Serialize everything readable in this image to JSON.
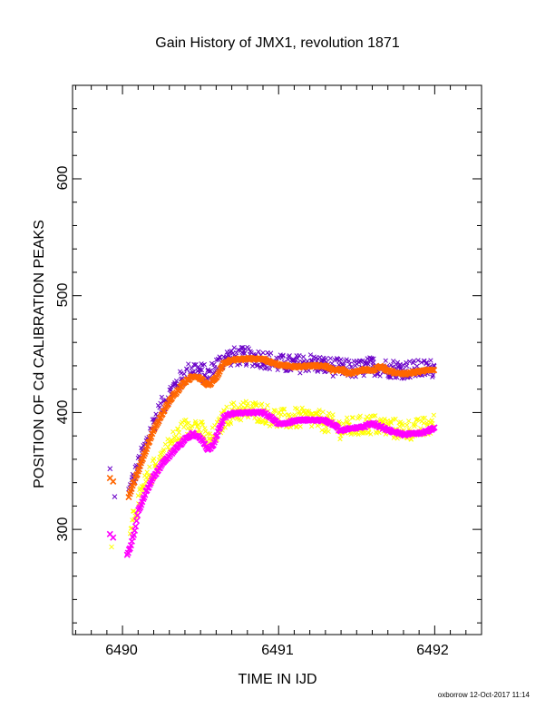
{
  "colors": {
    "orange": "#ff6600",
    "purple": "#6a00c8",
    "magenta": "#ff00ff",
    "yellow": "#ffff00",
    "axis": "#000000"
  },
  "chart_data": {
    "type": "scatter",
    "title": "Gain History of JMX1, revolution 1871",
    "xlabel": "TIME IN IJD",
    "ylabel": "POSITION OF Cd CALIBRATION PEAKS",
    "footer": "oxborrow 12-Oct-2017 11:14",
    "xlim": [
      6489.68,
      6492.3
    ],
    "ylim": [
      210,
      680
    ],
    "x_ticks": [
      "6490",
      "6491",
      "6492"
    ],
    "y_ticks": [
      "300",
      "400",
      "500",
      "600"
    ],
    "grid": false,
    "legend": "none",
    "series": [
      {
        "marker": "cross-dense",
        "color": "orange",
        "x": [
          6489.92,
          6489.94,
          6490.04,
          6490.1,
          6490.15,
          6490.2,
          6490.25,
          6490.3,
          6490.35,
          6490.4,
          6490.45,
          6490.5,
          6490.55,
          6490.6,
          6490.65,
          6490.7,
          6490.8,
          6490.9,
          6490.95,
          6491.0,
          6491.1,
          6491.2,
          6491.3,
          6491.35,
          6491.4,
          6491.45,
          6491.5,
          6491.55,
          6491.6,
          6491.65,
          6491.7,
          6491.75,
          6491.8,
          6491.85,
          6491.9,
          6491.95,
          6492.0
        ],
        "y": [
          344,
          341,
          328,
          350,
          368,
          385,
          398,
          410,
          418,
          426,
          431,
          429,
          423,
          430,
          442,
          445,
          446,
          446,
          443,
          441,
          439,
          440,
          440,
          436,
          437,
          433,
          435,
          437,
          436,
          440,
          436,
          434,
          433,
          434,
          435,
          436,
          437
        ]
      },
      {
        "marker": "cross-scatter",
        "color": "purple",
        "x": [
          6489.92,
          6489.95,
          6490.04,
          6490.1,
          6490.15,
          6490.2,
          6490.25,
          6490.3,
          6490.35,
          6490.4,
          6490.45,
          6490.5,
          6490.55,
          6490.6,
          6490.65,
          6490.7,
          6490.8,
          6490.9,
          6491.0,
          6491.1,
          6491.2,
          6491.3,
          6491.4,
          6491.5,
          6491.6,
          6491.7,
          6491.8,
          6491.9,
          6492.0
        ],
        "y": [
          352,
          328,
          332,
          355,
          372,
          392,
          405,
          416,
          425,
          432,
          438,
          435,
          432,
          440,
          446,
          448,
          448,
          446,
          442,
          441,
          443,
          440,
          438,
          437,
          440,
          438,
          437,
          437,
          438
        ]
      },
      {
        "marker": "cross-dense",
        "color": "magenta",
        "x": [
          6489.92,
          6489.94,
          6490.03,
          6490.05,
          6490.08,
          6490.1,
          6490.15,
          6490.2,
          6490.25,
          6490.3,
          6490.35,
          6490.4,
          6490.45,
          6490.5,
          6490.55,
          6490.58,
          6490.62,
          6490.65,
          6490.7,
          6490.8,
          6490.9,
          6490.95,
          6491.0,
          6491.05,
          6491.1,
          6491.2,
          6491.3,
          6491.35,
          6491.4,
          6491.45,
          6491.5,
          6491.55,
          6491.6,
          6491.65,
          6491.7,
          6491.75,
          6491.8,
          6491.85,
          6491.9,
          6491.95,
          6492.0
        ],
        "y": [
          296,
          293,
          278,
          285,
          300,
          315,
          332,
          345,
          355,
          363,
          370,
          377,
          382,
          378,
          368,
          372,
          386,
          396,
          399,
          400,
          400,
          396,
          390,
          391,
          393,
          394,
          393,
          390,
          384,
          386,
          387,
          388,
          391,
          388,
          385,
          383,
          381,
          382,
          382,
          384,
          387
        ]
      },
      {
        "marker": "cross-scatter",
        "color": "yellow",
        "x": [
          6489.93,
          6490.05,
          6490.1,
          6490.15,
          6490.2,
          6490.25,
          6490.3,
          6490.35,
          6490.4,
          6490.45,
          6490.5,
          6490.55,
          6490.6,
          6490.65,
          6490.7,
          6490.8,
          6490.9,
          6491.0,
          6491.1,
          6491.2,
          6491.3,
          6491.4,
          6491.5,
          6491.6,
          6491.7,
          6491.8,
          6491.9,
          6492.0
        ],
        "y": [
          285,
          305,
          322,
          340,
          352,
          362,
          372,
          380,
          386,
          390,
          385,
          375,
          382,
          395,
          400,
          402,
          400,
          394,
          395,
          395,
          392,
          386,
          388,
          390,
          387,
          385,
          386,
          390
        ]
      }
    ]
  }
}
